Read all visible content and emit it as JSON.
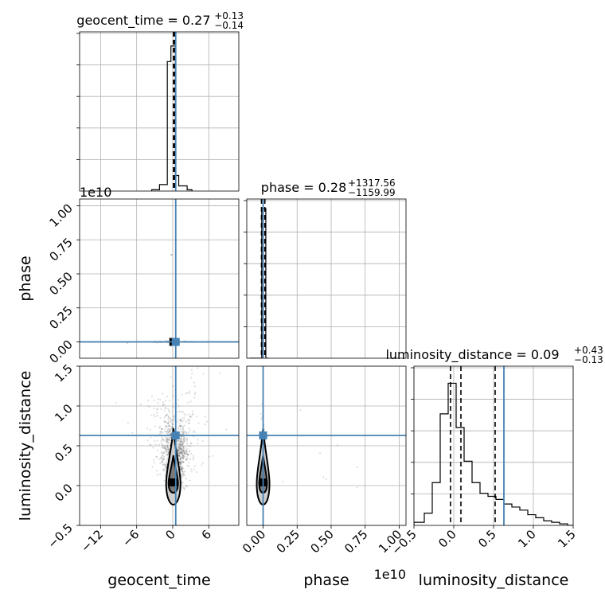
{
  "chart_data": {
    "type": "corner",
    "colors": {
      "truth": "#4682b4",
      "hist": "#000000",
      "grid": "#b0b0b0",
      "scatter": "#000000"
    },
    "parameters": [
      "geocent_time",
      "phase",
      "luminosity_distance"
    ],
    "truths": {
      "geocent_time": 0.5,
      "phase": 0.0,
      "luminosity_distance": 0.63
    },
    "titles": [
      {
        "param": "geocent_time",
        "main": "geocent_time = 0.27",
        "up": "+0.13",
        "down": "−0.14"
      },
      {
        "param": "phase",
        "main": "phase = 0.28",
        "up": "+1317.56",
        "down": "−1159.99"
      },
      {
        "param": "luminosity_distance",
        "main": "luminosity_distance = 0.09",
        "up": "+0.43",
        "down": "−0.13"
      }
    ],
    "axes": {
      "geocent_time": {
        "range": [
          -15.5,
          11
        ],
        "ticks": [
          -12,
          -6,
          0,
          6
        ],
        "tick_labels": [
          "−12",
          "−6",
          "0",
          "6"
        ],
        "label": "geocent_time"
      },
      "phase": {
        "range": [
          -0.12,
          1.05
        ],
        "ticks": [
          0,
          0.25,
          0.5,
          0.75,
          1.0
        ],
        "tick_labels": [
          "0.00",
          "0.25",
          "0.50",
          "0.75",
          "1.00"
        ],
        "label": "phase",
        "offset_text": "1e10"
      },
      "luminosity_distance": {
        "range": [
          -0.5,
          1.5
        ],
        "ticks": [
          -0.5,
          0,
          0.5,
          1.0,
          1.5
        ],
        "tick_labels": [
          "−0.5",
          "0.0",
          "0.5",
          "1.0",
          "1.5"
        ],
        "label": "luminosity_distance"
      }
    },
    "diag_hist": {
      "geocent_time": {
        "bins": [
          [
            -3.5,
            -2.2,
            1
          ],
          [
            -2.2,
            -0.9,
            5
          ],
          [
            -0.9,
            -0.3,
            100
          ],
          [
            -0.3,
            0.45,
            112
          ],
          [
            0.45,
            1.0,
            12
          ],
          [
            1.0,
            2.4,
            4
          ],
          [
            2.4,
            3.2,
            1
          ]
        ],
        "ymax": 118,
        "quantile_lines": [
          0.13,
          0.27,
          0.4
        ]
      },
      "phase": {
        "bins": [
          [
            -0.1,
            -0.01,
            0
          ],
          [
            -0.01,
            0.0,
            98
          ],
          [
            0.0,
            0.02,
            98
          ],
          [
            0.02,
            0.04,
            0
          ]
        ],
        "ymax": 100,
        "quantile_lines": [
          -0.012,
          0.0,
          0.013
        ]
      },
      "luminosity_distance": {
        "bins": [
          [
            -0.5,
            -0.37,
            2
          ],
          [
            -0.37,
            -0.27,
            8
          ],
          [
            -0.27,
            -0.17,
            28
          ],
          [
            -0.17,
            -0.07,
            73
          ],
          [
            -0.07,
            0.03,
            93
          ],
          [
            0.03,
            0.13,
            64
          ],
          [
            0.13,
            0.23,
            42
          ],
          [
            0.23,
            0.33,
            28
          ],
          [
            0.33,
            0.43,
            21
          ],
          [
            0.43,
            0.53,
            19
          ],
          [
            0.53,
            0.63,
            17
          ],
          [
            0.63,
            0.73,
            14
          ],
          [
            0.73,
            0.83,
            12
          ],
          [
            0.83,
            0.93,
            10
          ],
          [
            0.93,
            1.03,
            7
          ],
          [
            1.03,
            1.13,
            5
          ],
          [
            1.13,
            1.23,
            3
          ],
          [
            1.23,
            1.33,
            2
          ],
          [
            1.33,
            1.43,
            1
          ],
          [
            1.43,
            1.5,
            0
          ]
        ],
        "ymax": 100,
        "quantile_lines": [
          -0.04,
          0.09,
          0.52
        ]
      }
    },
    "diag_ytick_count": 5
  }
}
